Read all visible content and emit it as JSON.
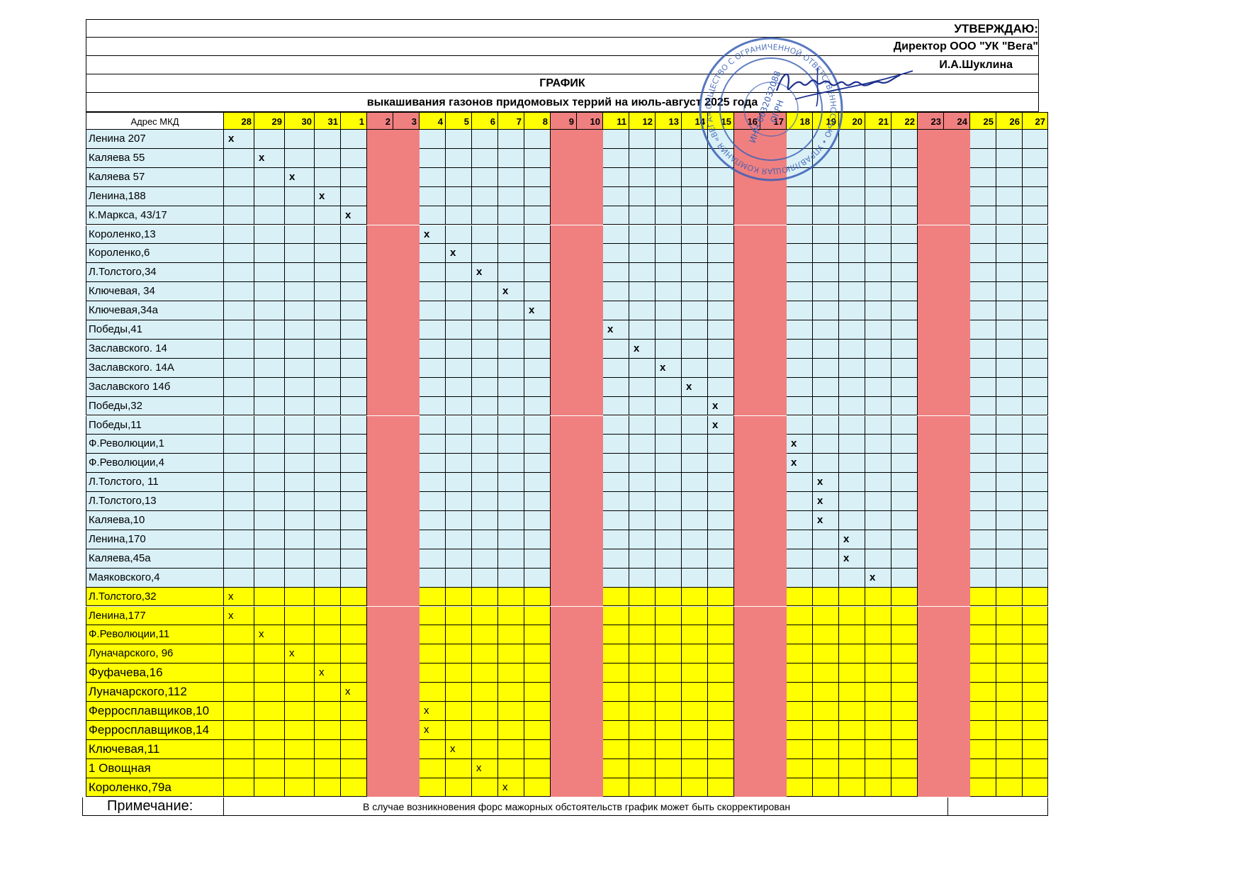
{
  "header": {
    "approve": "УТВЕРЖДАЮ:",
    "director": "Директор ООО \"УК \"Вега\"",
    "name": "И.А.Шуклина",
    "title": "ГРАФИК",
    "subtitle": "выкашивания газонов придомовых террий на июль-август  2025 года"
  },
  "table": {
    "address_header": "Адрес МКД",
    "days": [
      "28",
      "29",
      "30",
      "31",
      "1",
      "2",
      "3",
      "4",
      "5",
      "6",
      "7",
      "8",
      "9",
      "10",
      "11",
      "12",
      "13",
      "14",
      "15",
      "16",
      "17",
      "18",
      "19",
      "20",
      "21",
      "22",
      "23",
      "24",
      "25",
      "26",
      "27"
    ],
    "weekend_columns": [
      5,
      6,
      12,
      13,
      19,
      20,
      26,
      27
    ],
    "day_header_yellow": [
      0,
      1,
      2,
      3,
      4,
      5,
      6,
      7,
      8,
      9,
      10,
      11,
      12,
      13,
      14,
      15,
      16,
      17,
      18,
      19,
      20,
      21,
      22,
      23,
      24,
      25,
      26,
      27,
      28,
      29,
      30
    ],
    "rows": [
      {
        "address": "Ленина 207",
        "mark": 0,
        "group": "blue"
      },
      {
        "address": "Каляева 55",
        "mark": 1,
        "group": "blue"
      },
      {
        "address": "Каляева 57",
        "mark": 2,
        "group": "blue"
      },
      {
        "address": "Ленина,188",
        "mark": 3,
        "group": "blue"
      },
      {
        "address": "К.Маркса, 43/17",
        "mark": 4,
        "group": "blue"
      },
      {
        "address": " Короленко,13",
        "mark": 7,
        "group": "blue"
      },
      {
        "address": "Короленко,6",
        "mark": 8,
        "group": "blue"
      },
      {
        "address": "Л.Толстого,34",
        "mark": 9,
        "group": "blue"
      },
      {
        "address": "Ключевая, 34",
        "mark": 10,
        "group": "blue"
      },
      {
        "address": "Ключевая,34а",
        "mark": 11,
        "group": "blue"
      },
      {
        "address": "Победы,41",
        "mark": 14,
        "group": "blue"
      },
      {
        "address": "Заславского. 14",
        "mark": 15,
        "group": "blue"
      },
      {
        "address": "Заславского.  14А",
        "mark": 16,
        "group": "blue"
      },
      {
        "address": "Заславского 14б",
        "mark": 17,
        "group": "blue"
      },
      {
        "address": "Победы,32",
        "mark": 18,
        "group": "blue"
      },
      {
        "address": "Победы,11",
        "mark": 18,
        "group": "blue"
      },
      {
        "address": "Ф.Революции,1",
        "mark": 21,
        "group": "blue"
      },
      {
        "address": "Ф.Революции,4",
        "mark": 21,
        "group": "blue"
      },
      {
        "address": "Л.Толстого, 11",
        "mark": 22,
        "group": "blue"
      },
      {
        "address": "Л.Толстого,13",
        "mark": 22,
        "group": "blue"
      },
      {
        "address": "Каляева,10",
        "mark": 22,
        "group": "blue"
      },
      {
        "address": "Ленина,170",
        "mark": 23,
        "group": "blue"
      },
      {
        "address": "Каляева,45а",
        "mark": 23,
        "group": "blue"
      },
      {
        "address": "Маяковского,4",
        "mark": 24,
        "group": "blue"
      },
      {
        "address": "Л.Толстого,32",
        "mark": 0,
        "group": "yellow"
      },
      {
        "address": "Ленина,177",
        "mark": 0,
        "group": "yellow"
      },
      {
        "address": "Ф.Революции,11",
        "mark": 1,
        "group": "yellow"
      },
      {
        "address": "Луначарского, 96",
        "mark": 2,
        "group": "yellow"
      },
      {
        "address": "Фуфачева,16",
        "mark": 3,
        "group": "yellow"
      },
      {
        "address": "Луначарского,112",
        "mark": 4,
        "group": "yellow"
      },
      {
        "address": "Ферросплавщиков,10",
        "mark": 7,
        "group": "yellow"
      },
      {
        "address": "Ферросплавщиков,14",
        "mark": 7,
        "group": "yellow"
      },
      {
        "address": "Ключевая,11",
        "mark": 8,
        "group": "yellow"
      },
      {
        "address": "1 Овощная",
        "mark": 9,
        "group": "yellow"
      },
      {
        "address": "Короленко,79а",
        "mark": 10,
        "group": "yellow"
      }
    ],
    "mark_symbol": "x"
  },
  "note": {
    "label": "Примечание:",
    "text": "В случае возникновения форс мажорных обстоятельств график может быть скорректирован"
  },
  "colors": {
    "blue_bg": "#d9f0f7",
    "yellow_bg": "#ffff00",
    "weekend_bg": "#f08080",
    "stamp": "#3a5fb5"
  },
  "stamp": {
    "ring_text": "ОБЩЕСТВО С ОГРАНИЧЕННОЙ ОТВЕТСТВЕННОСТЬЮ • УПРАВЛЯЮЩАЯ КОМПАНИЯ «ВЕГА» •",
    "center_lines": [
      "ИНН 6632032088",
      "ОГРН"
    ]
  }
}
